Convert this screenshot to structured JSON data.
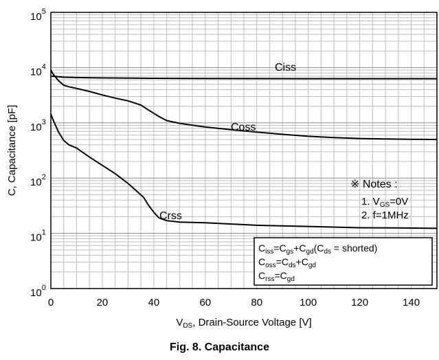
{
  "caption": "Fig. 8. Capacitance",
  "chart_data": {
    "type": "line",
    "x_axis": {
      "label_prefix": "V",
      "label_sub": "DS",
      "label_suffix": ", Drain-Source Voltage [V]",
      "range": [
        0,
        150
      ],
      "ticks": [
        0,
        20,
        40,
        60,
        80,
        100,
        120,
        140
      ],
      "tick_labels": [
        "0",
        "20",
        "40",
        "60",
        "80",
        "100",
        "120",
        "140"
      ]
    },
    "y_axis": {
      "label": "C, Capacitance [pF]",
      "scale": "log",
      "range": [
        1,
        100000
      ],
      "decades": [
        {
          "base": "10",
          "exp": "0"
        },
        {
          "base": "10",
          "exp": "1"
        },
        {
          "base": "10",
          "exp": "2"
        },
        {
          "base": "10",
          "exp": "3"
        },
        {
          "base": "10",
          "exp": "4"
        },
        {
          "base": "10",
          "exp": "5"
        }
      ]
    },
    "grid": true,
    "series": [
      {
        "name": "Ciss",
        "x": [
          0,
          2,
          5,
          10,
          20,
          40,
          60,
          100,
          150
        ],
        "y": [
          7000,
          6900,
          6700,
          6600,
          6500,
          6400,
          6350,
          6300,
          6300
        ]
      },
      {
        "name": "Coss",
        "x": [
          0,
          1,
          3,
          5,
          7,
          10,
          15,
          20,
          25,
          30,
          35,
          38,
          42,
          45,
          50,
          60,
          70,
          80,
          90,
          100,
          110,
          120,
          130,
          140,
          150
        ],
        "y": [
          9000,
          7500,
          5800,
          4800,
          4500,
          4200,
          3700,
          3200,
          2800,
          2500,
          2100,
          1700,
          1300,
          1100,
          980,
          840,
          750,
          680,
          620,
          570,
          540,
          520,
          510,
          505,
          500
        ]
      },
      {
        "name": "Crss",
        "x": [
          0,
          1,
          3,
          5,
          7,
          10,
          15,
          20,
          25,
          30,
          33,
          36,
          38,
          40,
          42,
          45,
          50,
          60,
          80,
          100,
          120,
          135,
          150
        ],
        "y": [
          1450,
          1100,
          680,
          480,
          400,
          350,
          240,
          170,
          120,
          80,
          60,
          45,
          32,
          24,
          19,
          17,
          16,
          15.5,
          14,
          13.3,
          12.6,
          12.5,
          12.3
        ]
      }
    ],
    "annotations": {
      "notes_title": "※ Notes :",
      "note1_prefix": "1. V",
      "note1_sub": "GS",
      "note1_suffix": "=0V",
      "note2": "2. f=1MHz",
      "formula1": {
        "a": "C",
        "a_sub": "iss",
        "b": "=C",
        "b_sub": "gs",
        "c": "+C",
        "c_sub": "gd",
        "d": "(C",
        "d_sub": "ds",
        "e": " = shorted)"
      },
      "formula2": {
        "a": "C",
        "a_sub": "oss",
        "b": "=C",
        "b_sub": "ds",
        "c": "+C",
        "c_sub": "gd"
      },
      "formula3": {
        "a": "C",
        "a_sub": "rss",
        "b": "=C",
        "b_sub": "gd"
      }
    }
  }
}
